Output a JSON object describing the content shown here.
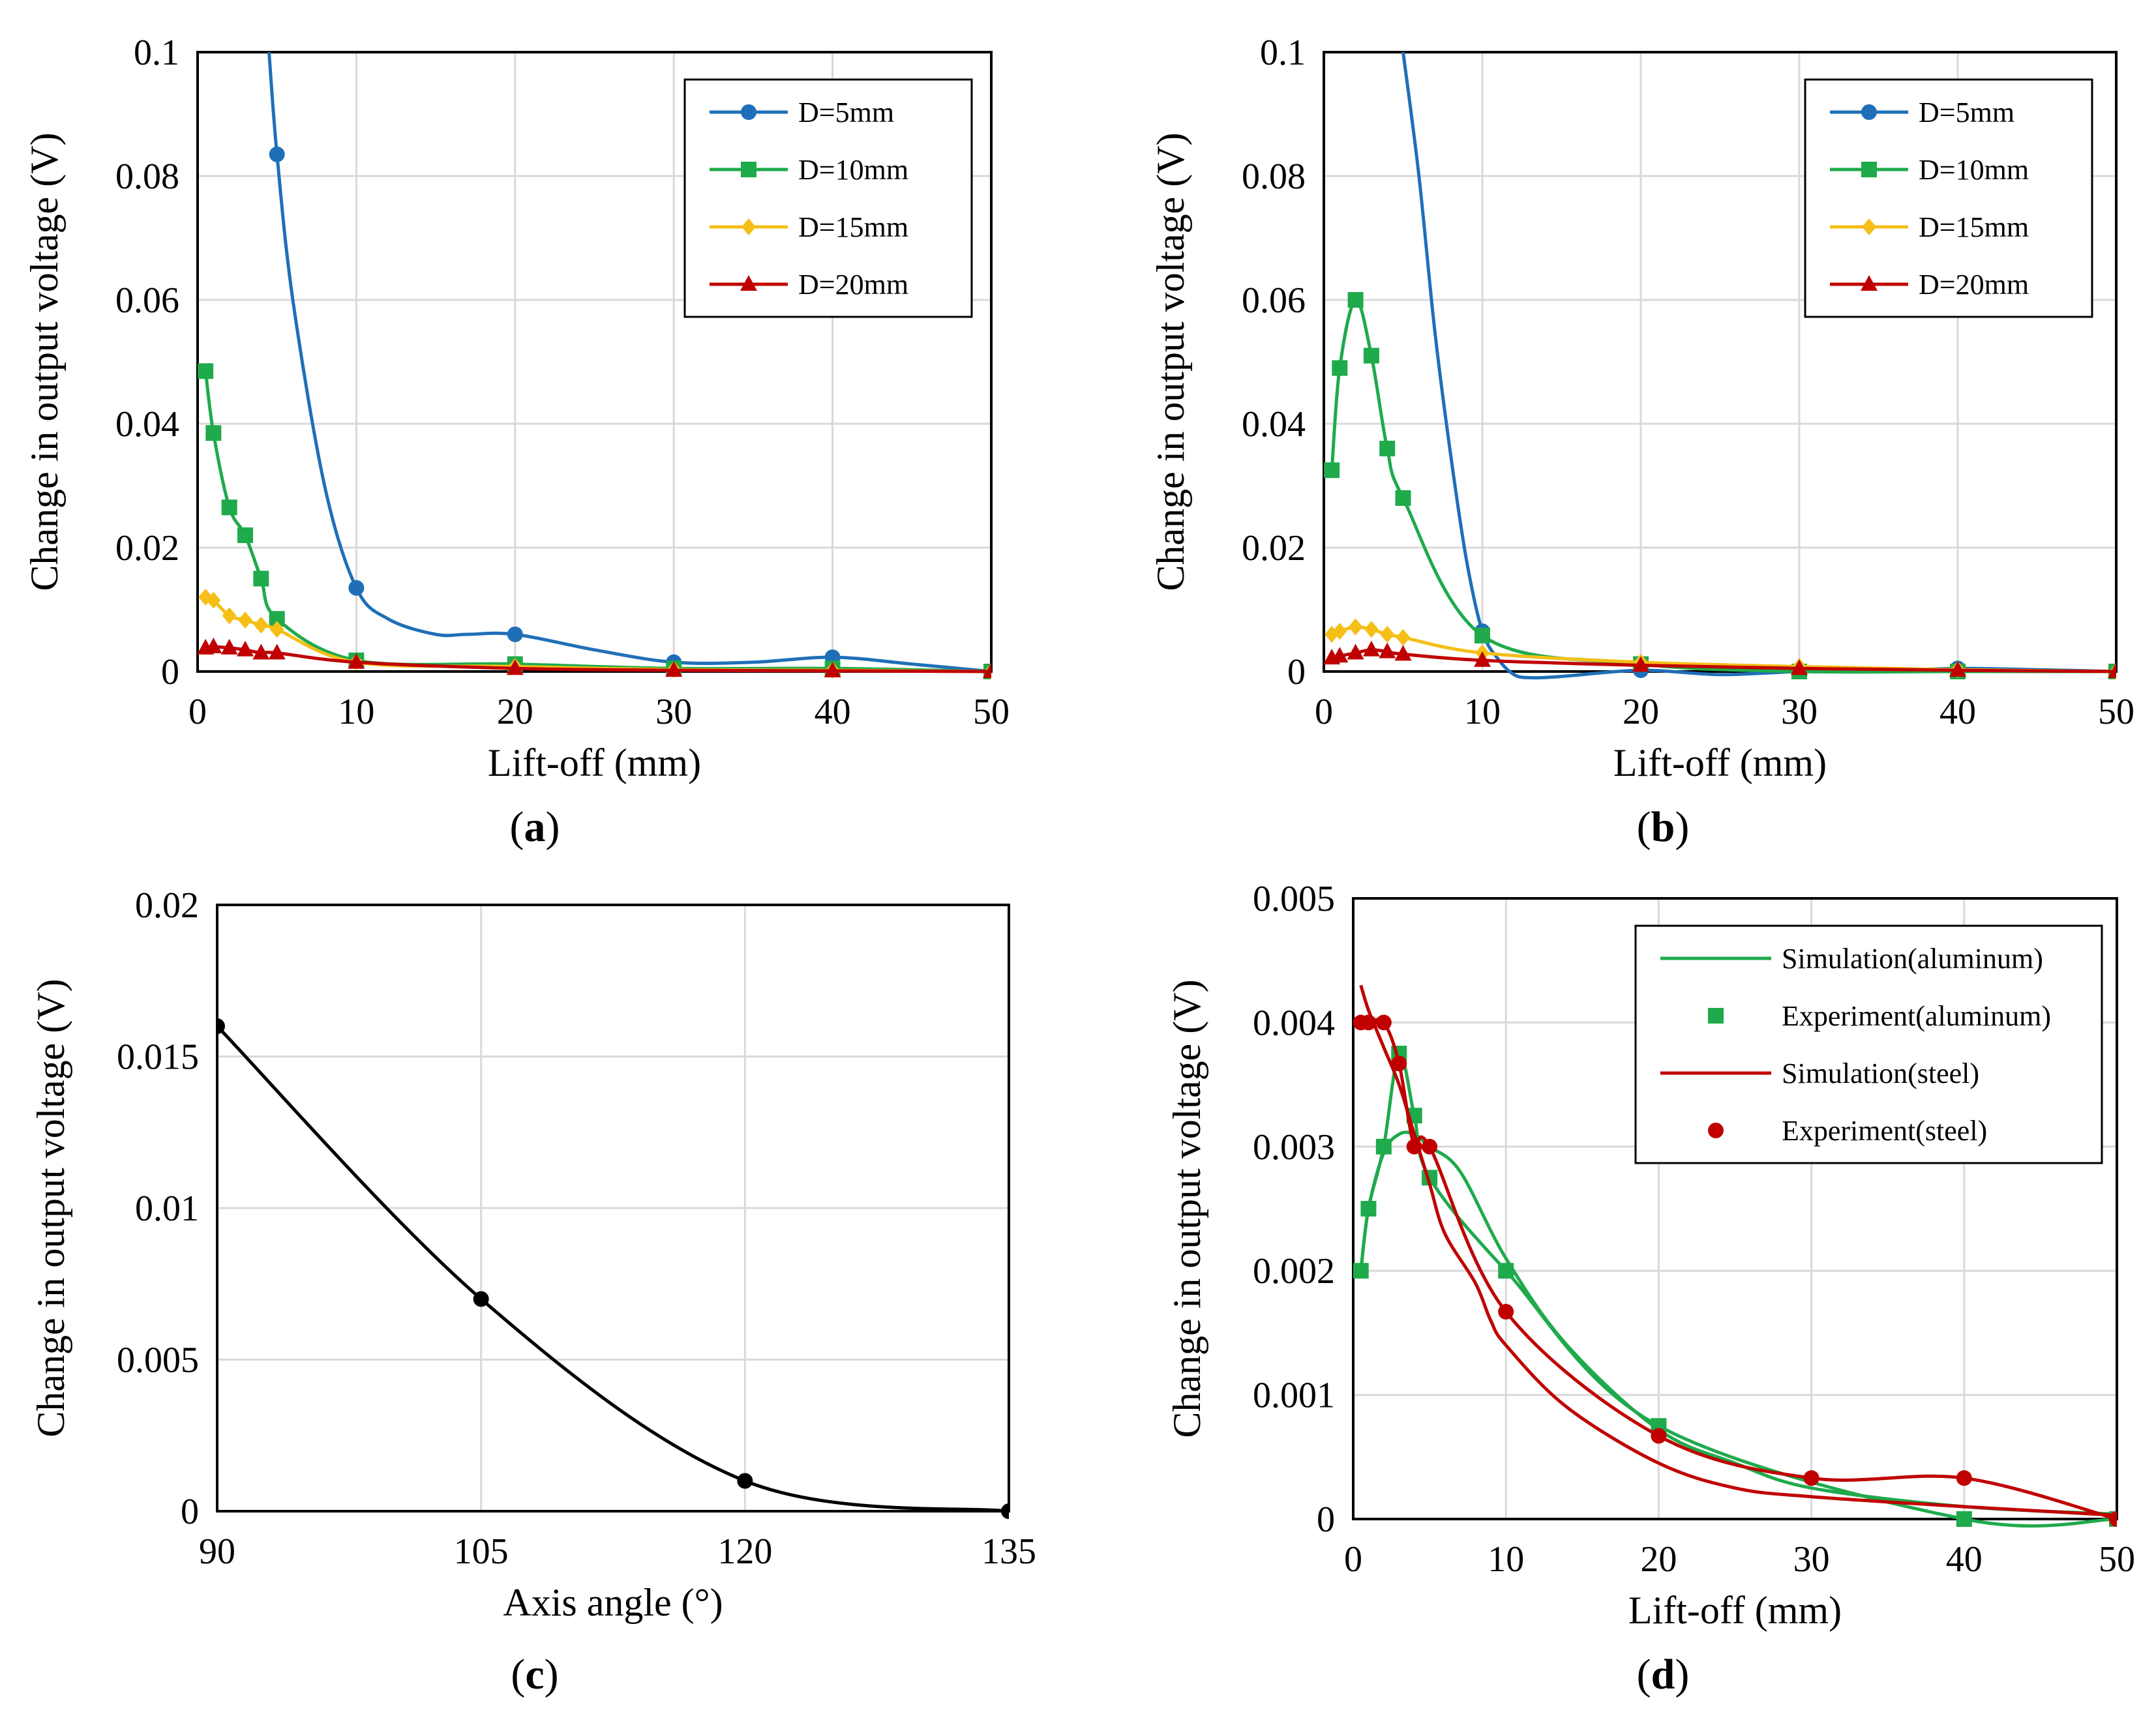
{
  "chart_data": [
    {
      "id": "a",
      "type": "line",
      "panel_label": "a",
      "xlabel": "Lift-off (mm)",
      "ylabel": "Change in output voltage (V)",
      "xlim": [
        0,
        50
      ],
      "ylim": [
        0,
        0.1
      ],
      "xticks": [
        0,
        10,
        20,
        30,
        40,
        50
      ],
      "yticks": [
        0,
        0.02,
        0.04,
        0.06,
        0.08,
        0.1
      ],
      "xtick_labels": [
        "0",
        "10",
        "20",
        "30",
        "40",
        "50"
      ],
      "ytick_labels": [
        "0",
        "0.02",
        "0.04",
        "0.06",
        "0.08",
        "0.1"
      ],
      "grid": true,
      "legend": "top-right",
      "series": [
        {
          "name": "D=5mm",
          "color": "#1f6fb8",
          "marker": "circle",
          "x": [
            5,
            10,
            20,
            30,
            40,
            50
          ],
          "y": [
            0.0835,
            0.0135,
            0.006,
            0.0015,
            0.0023,
            0
          ],
          "line": [
            [
              4.5,
              0.1
            ],
            [
              5,
              0.0835
            ],
            [
              6,
              0.06
            ],
            [
              8,
              0.03
            ],
            [
              10,
              0.0135
            ],
            [
              12,
              0.0085
            ],
            [
              15,
              0.006
            ],
            [
              17,
              0.006
            ],
            [
              20,
              0.006
            ],
            [
              25,
              0.0035
            ],
            [
              30,
              0.0015
            ],
            [
              35,
              0.0015
            ],
            [
              40,
              0.0023
            ],
            [
              45,
              0.0012
            ],
            [
              50,
              0
            ]
          ]
        },
        {
          "name": "D=10mm",
          "color": "#1faa4b",
          "marker": "square",
          "x": [
            0.5,
            1,
            2,
            3,
            4,
            5,
            10,
            20,
            30,
            40,
            50
          ],
          "y": [
            0.0485,
            0.0385,
            0.0265,
            0.022,
            0.015,
            0.0085,
            0.0018,
            0.0012,
            0.0005,
            0.0005,
            0
          ]
        },
        {
          "name": "D=15mm",
          "color": "#f5bf17",
          "marker": "diamond",
          "x": [
            0.5,
            1,
            2,
            3,
            4,
            5,
            10,
            20,
            30,
            40,
            50
          ],
          "y": [
            0.012,
            0.0115,
            0.009,
            0.0083,
            0.0075,
            0.0068,
            0.0015,
            0.0008,
            0.0003,
            0.0002,
            0
          ]
        },
        {
          "name": "D=20mm",
          "color": "#c00000",
          "marker": "triangle",
          "x": [
            0.5,
            1,
            2,
            3,
            4,
            5,
            10,
            20,
            30,
            40,
            50
          ],
          "y": [
            0.0038,
            0.004,
            0.0038,
            0.0035,
            0.003,
            0.003,
            0.0015,
            0.0005,
            0.0002,
            0.0001,
            0
          ]
        }
      ]
    },
    {
      "id": "b",
      "type": "line",
      "panel_label": "b",
      "xlabel": "Lift-off (mm)",
      "ylabel": "Change in output voltage (V)",
      "xlim": [
        0,
        50
      ],
      "ylim": [
        0,
        0.1
      ],
      "xticks": [
        0,
        10,
        20,
        30,
        40,
        50
      ],
      "yticks": [
        0,
        0.02,
        0.04,
        0.06,
        0.08,
        0.1
      ],
      "xtick_labels": [
        "0",
        "10",
        "20",
        "30",
        "40",
        "50"
      ],
      "ytick_labels": [
        "0",
        "0.02",
        "0.04",
        "0.06",
        "0.08",
        "0.1"
      ],
      "grid": true,
      "legend": "top-right",
      "series": [
        {
          "name": "D=5mm",
          "color": "#1f6fb8",
          "marker": "circle",
          "x": [
            10,
            20,
            30,
            40,
            50
          ],
          "y": [
            0.0065,
            0.0002,
            0,
            0.0005,
            0
          ],
          "line": [
            [
              5,
              0.1
            ],
            [
              6,
              0.08
            ],
            [
              7,
              0.055
            ],
            [
              8,
              0.035
            ],
            [
              9,
              0.018
            ],
            [
              10,
              0.0065
            ],
            [
              11,
              0.002
            ],
            [
              12,
              -0.0005
            ],
            [
              13,
              -0.001
            ],
            [
              15,
              -0.0008
            ],
            [
              20,
              0.0002
            ],
            [
              25,
              -0.0005
            ],
            [
              30,
              0
            ],
            [
              35,
              0.0001
            ],
            [
              40,
              0.0005
            ],
            [
              45,
              0.0003
            ],
            [
              50,
              0
            ]
          ]
        },
        {
          "name": "D=10mm",
          "color": "#1faa4b",
          "marker": "square",
          "x": [
            0.5,
            1,
            2,
            3,
            4,
            5,
            10,
            20,
            30,
            40,
            50
          ],
          "y": [
            0.0325,
            0.049,
            0.06,
            0.051,
            0.036,
            0.028,
            0.0058,
            0.0012,
            0,
            0,
            0
          ]
        },
        {
          "name": "D=15mm",
          "color": "#f5bf17",
          "marker": "diamond",
          "x": [
            0.5,
            1,
            2,
            3,
            4,
            5,
            10,
            20,
            30,
            40,
            50
          ],
          "y": [
            0.006,
            0.0065,
            0.0072,
            0.0068,
            0.006,
            0.0055,
            0.003,
            0.0015,
            0.0008,
            0.0003,
            0
          ]
        },
        {
          "name": "D=20mm",
          "color": "#c00000",
          "marker": "triangle",
          "x": [
            0.5,
            1,
            2,
            3,
            4,
            5,
            10,
            20,
            30,
            40,
            50
          ],
          "y": [
            0.0022,
            0.0025,
            0.003,
            0.0035,
            0.0032,
            0.0028,
            0.0018,
            0.001,
            0.0005,
            0.0002,
            0
          ]
        }
      ]
    },
    {
      "id": "c",
      "type": "line",
      "panel_label": "c",
      "xlabel": "Axis angle (°)",
      "ylabel": "Change in output voltage (V)",
      "xlim": [
        90,
        135
      ],
      "ylim": [
        0,
        0.02
      ],
      "xticks": [
        90,
        105,
        120,
        135
      ],
      "yticks": [
        0,
        0.005,
        0.01,
        0.015,
        0.02
      ],
      "xtick_labels": [
        "90",
        "105",
        "120",
        "135"
      ],
      "ytick_labels": [
        "0",
        "0.005",
        "0.01",
        "0.015",
        "0.02"
      ],
      "grid": true,
      "legend": "none",
      "series": [
        {
          "name": "",
          "color": "#000000",
          "marker": "circle",
          "x": [
            90,
            105,
            120,
            135
          ],
          "y": [
            0.016,
            0.007,
            0.001,
            0
          ]
        }
      ]
    },
    {
      "id": "d",
      "type": "line",
      "panel_label": "d",
      "xlabel": "Lift-off (mm)",
      "ylabel": "Change in output voltage (V)",
      "xlim": [
        0,
        50
      ],
      "ylim": [
        0,
        0.005
      ],
      "xticks": [
        0,
        10,
        20,
        30,
        40,
        50
      ],
      "yticks": [
        0,
        0.001,
        0.002,
        0.003,
        0.004,
        0.005
      ],
      "xtick_labels": [
        "0",
        "10",
        "20",
        "30",
        "40",
        "50"
      ],
      "ytick_labels": [
        "0",
        "0.001",
        "0.002",
        "0.003",
        "0.004",
        "0.005"
      ],
      "grid": true,
      "legend": "top-right",
      "series": [
        {
          "name": "Simulation(aluminum)",
          "color": "#1faa4b",
          "marker": "none",
          "line": [
            [
              0.5,
              0.002
            ],
            [
              1,
              0.0025
            ],
            [
              2,
              0.00295
            ],
            [
              3,
              0.0031
            ],
            [
              4,
              0.0031
            ],
            [
              5,
              0.003
            ],
            [
              7,
              0.0028
            ],
            [
              10,
              0.0021
            ],
            [
              14,
              0.0014
            ],
            [
              20,
              0.00072
            ],
            [
              25,
              0.00045
            ],
            [
              30,
              0.00025
            ],
            [
              40,
              0.0001
            ],
            [
              50,
              4e-05
            ]
          ]
        },
        {
          "name": "Experiment(aluminum)",
          "color": "#1faa4b",
          "marker": "square",
          "x": [
            0.5,
            1,
            2,
            3,
            4,
            5,
            10,
            20,
            40,
            50
          ],
          "y": [
            0.002,
            0.0025,
            0.003,
            0.00375,
            0.00325,
            0.00275,
            0.002,
            0.00075,
            0,
            0
          ]
        },
        {
          "name": "Simulation(steel)",
          "color": "#c00000",
          "marker": "none",
          "line": [
            [
              0.5,
              0.0043
            ],
            [
              1,
              0.0041
            ],
            [
              2,
              0.0038
            ],
            [
              3,
              0.0035
            ],
            [
              4,
              0.0031
            ],
            [
              5,
              0.0027
            ],
            [
              6,
              0.0023
            ],
            [
              8,
              0.0019
            ],
            [
              9,
              0.0016
            ],
            [
              10,
              0.0014
            ],
            [
              14,
              0.0009
            ],
            [
              20,
              0.00045
            ],
            [
              25,
              0.00025
            ],
            [
              30,
              0.00018
            ],
            [
              40,
              0.0001
            ],
            [
              50,
              3e-05
            ]
          ]
        },
        {
          "name": "Experiment(steel)",
          "color": "#c00000",
          "marker": "circle",
          "x": [
            0.5,
            1,
            2,
            3,
            4,
            5,
            10,
            20,
            30,
            40,
            50
          ],
          "y": [
            0.004,
            0.004,
            0.004,
            0.00367,
            0.003,
            0.003,
            0.00167,
            0.00067,
            0.00033,
            0.00033,
            0
          ]
        }
      ]
    }
  ]
}
